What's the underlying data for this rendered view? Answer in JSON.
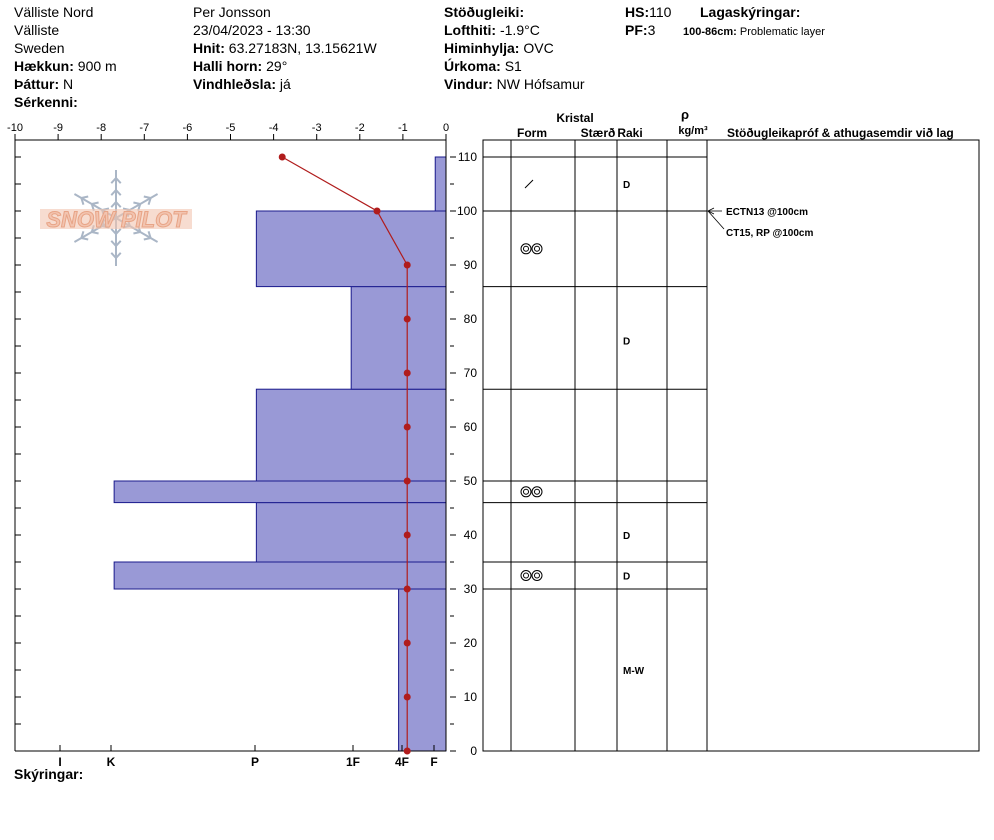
{
  "header": {
    "location": "Välliste Nord",
    "sublocation": "Välliste",
    "country": "Sweden",
    "elevation_label": "Hækkun:",
    "elevation_value": "900 m",
    "aspect_label": "Þáttur:",
    "aspect_value": "N",
    "features_label": "Sérkenni:",
    "observer": "Per Jonsson",
    "datetime": "23/04/2023 - 13:30",
    "coords_label": "Hnit:",
    "coords_value": "63.27183N, 13.15621W",
    "slope_label": "Halli horn:",
    "slope_value": "29°",
    "wind_loading_label": "Vindhleðsla:",
    "wind_loading_value": "já",
    "stability_label": "Stöðugleiki:",
    "air_temp_label": "Lofthiti:",
    "air_temp_value": "-1.9°C",
    "sky_label": "Himinhylja:",
    "sky_value": "OVC",
    "precip_label": "Úrkoma:",
    "precip_value": "S1",
    "wind_label": "Vindur:",
    "wind_value": "NW Hófsamur",
    "hs_label": "HS:",
    "hs_value": "110",
    "pf_label": "PF:",
    "pf_value": "3",
    "layer_notes_label": "Lagaskýringar:",
    "layer_note_range": "100-86cm:",
    "layer_note_text": "Problematic layer"
  },
  "columns": {
    "kristal": "Kristal",
    "form": "Form",
    "staerd": "Stærð",
    "raki": "Raki",
    "rho": "ρ",
    "density_unit": "kg/m³",
    "tests": "Stöðugleikapróf & athugasemdir við lag"
  },
  "footer": {
    "remarks_label": "Skýringar:"
  },
  "logo_text": "SNOW PILOT",
  "chart_data": {
    "type": "snow-profile",
    "temperature_axis": {
      "range": [
        -10,
        0
      ],
      "ticks": [
        "-10",
        "-9",
        "-8",
        "-7",
        "-6",
        "-5",
        "-4",
        "-3",
        "-2",
        "-1",
        "0"
      ]
    },
    "hardness_axis": {
      "labels": [
        "I",
        "K",
        "P",
        "1F",
        "4F",
        "F"
      ]
    },
    "depth_axis": {
      "range": [
        0,
        110
      ],
      "ticks": [
        "0",
        "10",
        "20",
        "30",
        "40",
        "50",
        "60",
        "70",
        "80",
        "90",
        "100",
        "110"
      ]
    },
    "hardness_layers": [
      {
        "bottom": 0,
        "top": 30,
        "temp_equiv": -1.1
      },
      {
        "bottom": 30,
        "top": 35,
        "temp_equiv": -7.7
      },
      {
        "bottom": 35,
        "top": 46,
        "temp_equiv": -4.4
      },
      {
        "bottom": 46,
        "top": 50,
        "temp_equiv": -7.7
      },
      {
        "bottom": 50,
        "top": 67,
        "temp_equiv": -4.4
      },
      {
        "bottom": 67,
        "top": 86,
        "temp_equiv": -2.2
      },
      {
        "bottom": 86,
        "top": 100,
        "temp_equiv": -4.4
      },
      {
        "bottom": 100,
        "top": 110,
        "temp_equiv": -0.25
      }
    ],
    "temperature_profile": [
      {
        "depth": 110,
        "temp": -3.8
      },
      {
        "depth": 100,
        "temp": -1.6
      },
      {
        "depth": 90,
        "temp": -0.9
      },
      {
        "depth": 80,
        "temp": -0.9
      },
      {
        "depth": 70,
        "temp": -0.9
      },
      {
        "depth": 60,
        "temp": -0.9
      },
      {
        "depth": 50,
        "temp": -0.9
      },
      {
        "depth": 40,
        "temp": -0.9
      },
      {
        "depth": 30,
        "temp": -0.9
      },
      {
        "depth": 20,
        "temp": -0.9
      },
      {
        "depth": 10,
        "temp": -0.9
      },
      {
        "depth": 0,
        "temp": -0.9
      }
    ],
    "layer_boundaries": [
      110,
      100,
      86,
      67,
      50,
      46,
      35,
      30,
      0
    ],
    "layer_details": [
      {
        "depth": 105,
        "form": "precip-particles",
        "moisture": "D"
      },
      {
        "depth": 93,
        "form": "melt-forms",
        "moisture": ""
      },
      {
        "depth": 76,
        "form": "",
        "moisture": "D"
      },
      {
        "depth": 48,
        "form": "melt-forms",
        "moisture": ""
      },
      {
        "depth": 40,
        "form": "",
        "moisture": "D"
      },
      {
        "depth": 32.5,
        "form": "melt-forms",
        "moisture": "D"
      },
      {
        "depth": 15,
        "form": "",
        "moisture": "M-W"
      }
    ],
    "stability_tests": [
      {
        "depth": 100,
        "text": "ECTN13 @100cm"
      },
      {
        "depth": 100,
        "text": "CT15, RP @100cm"
      }
    ],
    "colors": {
      "hardness_fill": "#9999d6",
      "hardness_stroke": "#1a1a8c",
      "temp_line": "#b01c1c",
      "logo_orange": "#e8a486",
      "logo_blue": "#aab6c6"
    }
  }
}
